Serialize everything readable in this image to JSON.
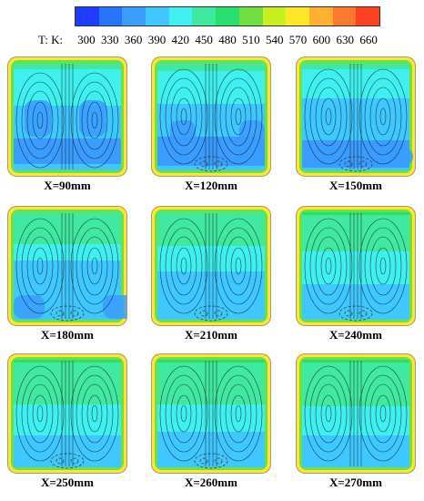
{
  "legend": {
    "title": "T: K:",
    "ticks": [
      "300",
      "330",
      "360",
      "390",
      "420",
      "450",
      "480",
      "510",
      "540",
      "570",
      "600",
      "630",
      "660"
    ],
    "colors": [
      "#1e3cff",
      "#2873ff",
      "#3a9cff",
      "#3ec8ff",
      "#40f0f0",
      "#40e8a0",
      "#28e070",
      "#70e040",
      "#c8f020",
      "#ffe628",
      "#ffb030",
      "#ff7830",
      "#ff4020"
    ]
  },
  "panels": [
    {
      "caption": "X=90mm",
      "variant": "a"
    },
    {
      "caption": "X=120mm",
      "variant": "b"
    },
    {
      "caption": "X=150mm",
      "variant": "c"
    },
    {
      "caption": "X=180mm",
      "variant": "d"
    },
    {
      "caption": "X=210mm",
      "variant": "e"
    },
    {
      "caption": "X=240mm",
      "variant": "f"
    },
    {
      "caption": "X=250mm",
      "variant": "g"
    },
    {
      "caption": "X=260mm",
      "variant": "h"
    },
    {
      "caption": "X=270mm",
      "variant": "i"
    }
  ]
}
